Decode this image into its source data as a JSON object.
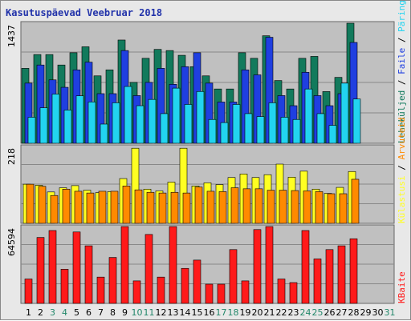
{
  "title": "Kasutuspäevad Veebruar 2018",
  "colors": {
    "background": "#e8e8e8",
    "plot_bg": "#c0c0c0",
    "grid": "#888888",
    "pages": "#127a5c",
    "files": "#1f3fe0",
    "hits": "#22d4f0",
    "visits": "#ffff22",
    "sites": "#ff8a00",
    "kbytes": "#ff1a1a",
    "weekend": "#22886a",
    "weekday": "#000000"
  },
  "side_labels": {
    "top": [
      "Leheküljed",
      "Faile",
      "Päringuid"
    ],
    "middle": [
      "Külastusi",
      "Arvuteid"
    ],
    "bottom": [
      "KBaite"
    ]
  },
  "chart_data": [
    {
      "type": "bar",
      "panel": "top",
      "ytick_label": "1437",
      "ylim": [
        0,
        1437
      ],
      "categories": [
        "1",
        "2",
        "3",
        "4",
        "5",
        "6",
        "7",
        "8",
        "9",
        "10",
        "11",
        "12",
        "13",
        "14",
        "15",
        "16",
        "17",
        "18",
        "19",
        "20",
        "21",
        "22",
        "23",
        "24",
        "25",
        "26",
        "27",
        "28",
        "29",
        "30",
        "31"
      ],
      "series": [
        {
          "name": "Leheküljed",
          "color_key": "pages",
          "values": [
            897,
            1062,
            1062,
            937,
            1084,
            1155,
            807,
            879,
            1236,
            729,
            1017,
            1124,
            1110,
            1053,
            917,
            807,
            650,
            650,
            1084,
            1017,
            1287,
            751,
            650,
            1017,
            1040,
            619,
            789,
            1437,
            0,
            0,
            0
          ]
        },
        {
          "name": "Faile",
          "color_key": "files",
          "values": [
            720,
            937,
            759,
            670,
            879,
            971,
            594,
            594,
            1110,
            571,
            729,
            897,
            706,
            917,
            1084,
            720,
            494,
            494,
            879,
            819,
            1269,
            571,
            450,
            850,
            571,
            450,
            594,
            1207,
            0,
            0,
            0
          ]
        },
        {
          "name": "Päringuid",
          "color_key": "hits",
          "values": [
            312,
            425,
            589,
            398,
            568,
            495,
            230,
            485,
            680,
            450,
            525,
            355,
            660,
            465,
            620,
            285,
            248,
            465,
            355,
            320,
            485,
            312,
            285,
            650,
            355,
            215,
            720,
            530,
            0,
            0,
            0
          ]
        }
      ]
    },
    {
      "type": "bar",
      "panel": "middle",
      "ytick_label": "218",
      "ylim": [
        0,
        218
      ],
      "categories": [
        "1",
        "2",
        "3",
        "4",
        "5",
        "6",
        "7",
        "8",
        "9",
        "10",
        "11",
        "12",
        "13",
        "14",
        "15",
        "16",
        "17",
        "18",
        "19",
        "20",
        "21",
        "22",
        "23",
        "24",
        "25",
        "26",
        "27",
        "28",
        "29",
        "30",
        "31"
      ],
      "series": [
        {
          "name": "Külastusi",
          "color_key": "visits",
          "values": [
            111,
            108,
            89,
            101,
            107,
            94,
            87,
            90,
            127,
            213,
            97,
            92,
            117,
            213,
            106,
            115,
            110,
            130,
            140,
            130,
            138,
            168,
            131,
            148,
            97,
            85,
            102,
            147,
            0,
            0,
            0
          ]
        },
        {
          "name": "Arvuteid",
          "color_key": "sites",
          "values": [
            111,
            105,
            79,
            97,
            91,
            86,
            91,
            91,
            106,
            95,
            88,
            86,
            88,
            86,
            103,
            91,
            90,
            101,
            98,
            98,
            94,
            94,
            93,
            92,
            90,
            84,
            84,
            125,
            0,
            0,
            0
          ]
        }
      ]
    },
    {
      "type": "bar",
      "panel": "bottom",
      "ytick_label": "64594",
      "ylim": [
        0,
        64594
      ],
      "categories": [
        "1",
        "2",
        "3",
        "4",
        "5",
        "6",
        "7",
        "8",
        "9",
        "10",
        "11",
        "12",
        "13",
        "14",
        "15",
        "16",
        "17",
        "18",
        "19",
        "20",
        "21",
        "22",
        "23",
        "24",
        "25",
        "26",
        "27",
        "28",
        "29",
        "30",
        "31"
      ],
      "series": [
        {
          "name": "KBaite",
          "color_key": "kbytes",
          "values": [
            20520,
            55420,
            61250,
            28700,
            60030,
            48400,
            22090,
            38620,
            64590,
            18910,
            57950,
            22090,
            64590,
            29440,
            36400,
            16150,
            16150,
            45220,
            18910,
            62050,
            64590,
            20520,
            17500,
            61250,
            37400,
            45220,
            48400,
            54340,
            0,
            0,
            0
          ]
        }
      ]
    }
  ],
  "x_labels": [
    {
      "label": "1",
      "weekend": false
    },
    {
      "label": "2",
      "weekend": false
    },
    {
      "label": "3",
      "weekend": true
    },
    {
      "label": "4",
      "weekend": true
    },
    {
      "label": "5",
      "weekend": false
    },
    {
      "label": "6",
      "weekend": false
    },
    {
      "label": "7",
      "weekend": false
    },
    {
      "label": "8",
      "weekend": false
    },
    {
      "label": "9",
      "weekend": false
    },
    {
      "label": "10",
      "weekend": true
    },
    {
      "label": "11",
      "weekend": true
    },
    {
      "label": "12",
      "weekend": false
    },
    {
      "label": "13",
      "weekend": false
    },
    {
      "label": "14",
      "weekend": false
    },
    {
      "label": "15",
      "weekend": false
    },
    {
      "label": "16",
      "weekend": false
    },
    {
      "label": "17",
      "weekend": true
    },
    {
      "label": "18",
      "weekend": true
    },
    {
      "label": "19",
      "weekend": false
    },
    {
      "label": "20",
      "weekend": false
    },
    {
      "label": "21",
      "weekend": false
    },
    {
      "label": "22",
      "weekend": false
    },
    {
      "label": "23",
      "weekend": false
    },
    {
      "label": "24",
      "weekend": true
    },
    {
      "label": "25",
      "weekend": true
    },
    {
      "label": "26",
      "weekend": false
    },
    {
      "label": "27",
      "weekend": false
    },
    {
      "label": "28",
      "weekend": false
    },
    {
      "label": "29",
      "weekend": false
    },
    {
      "label": "30",
      "weekend": false
    },
    {
      "label": "31",
      "weekend": true
    }
  ]
}
